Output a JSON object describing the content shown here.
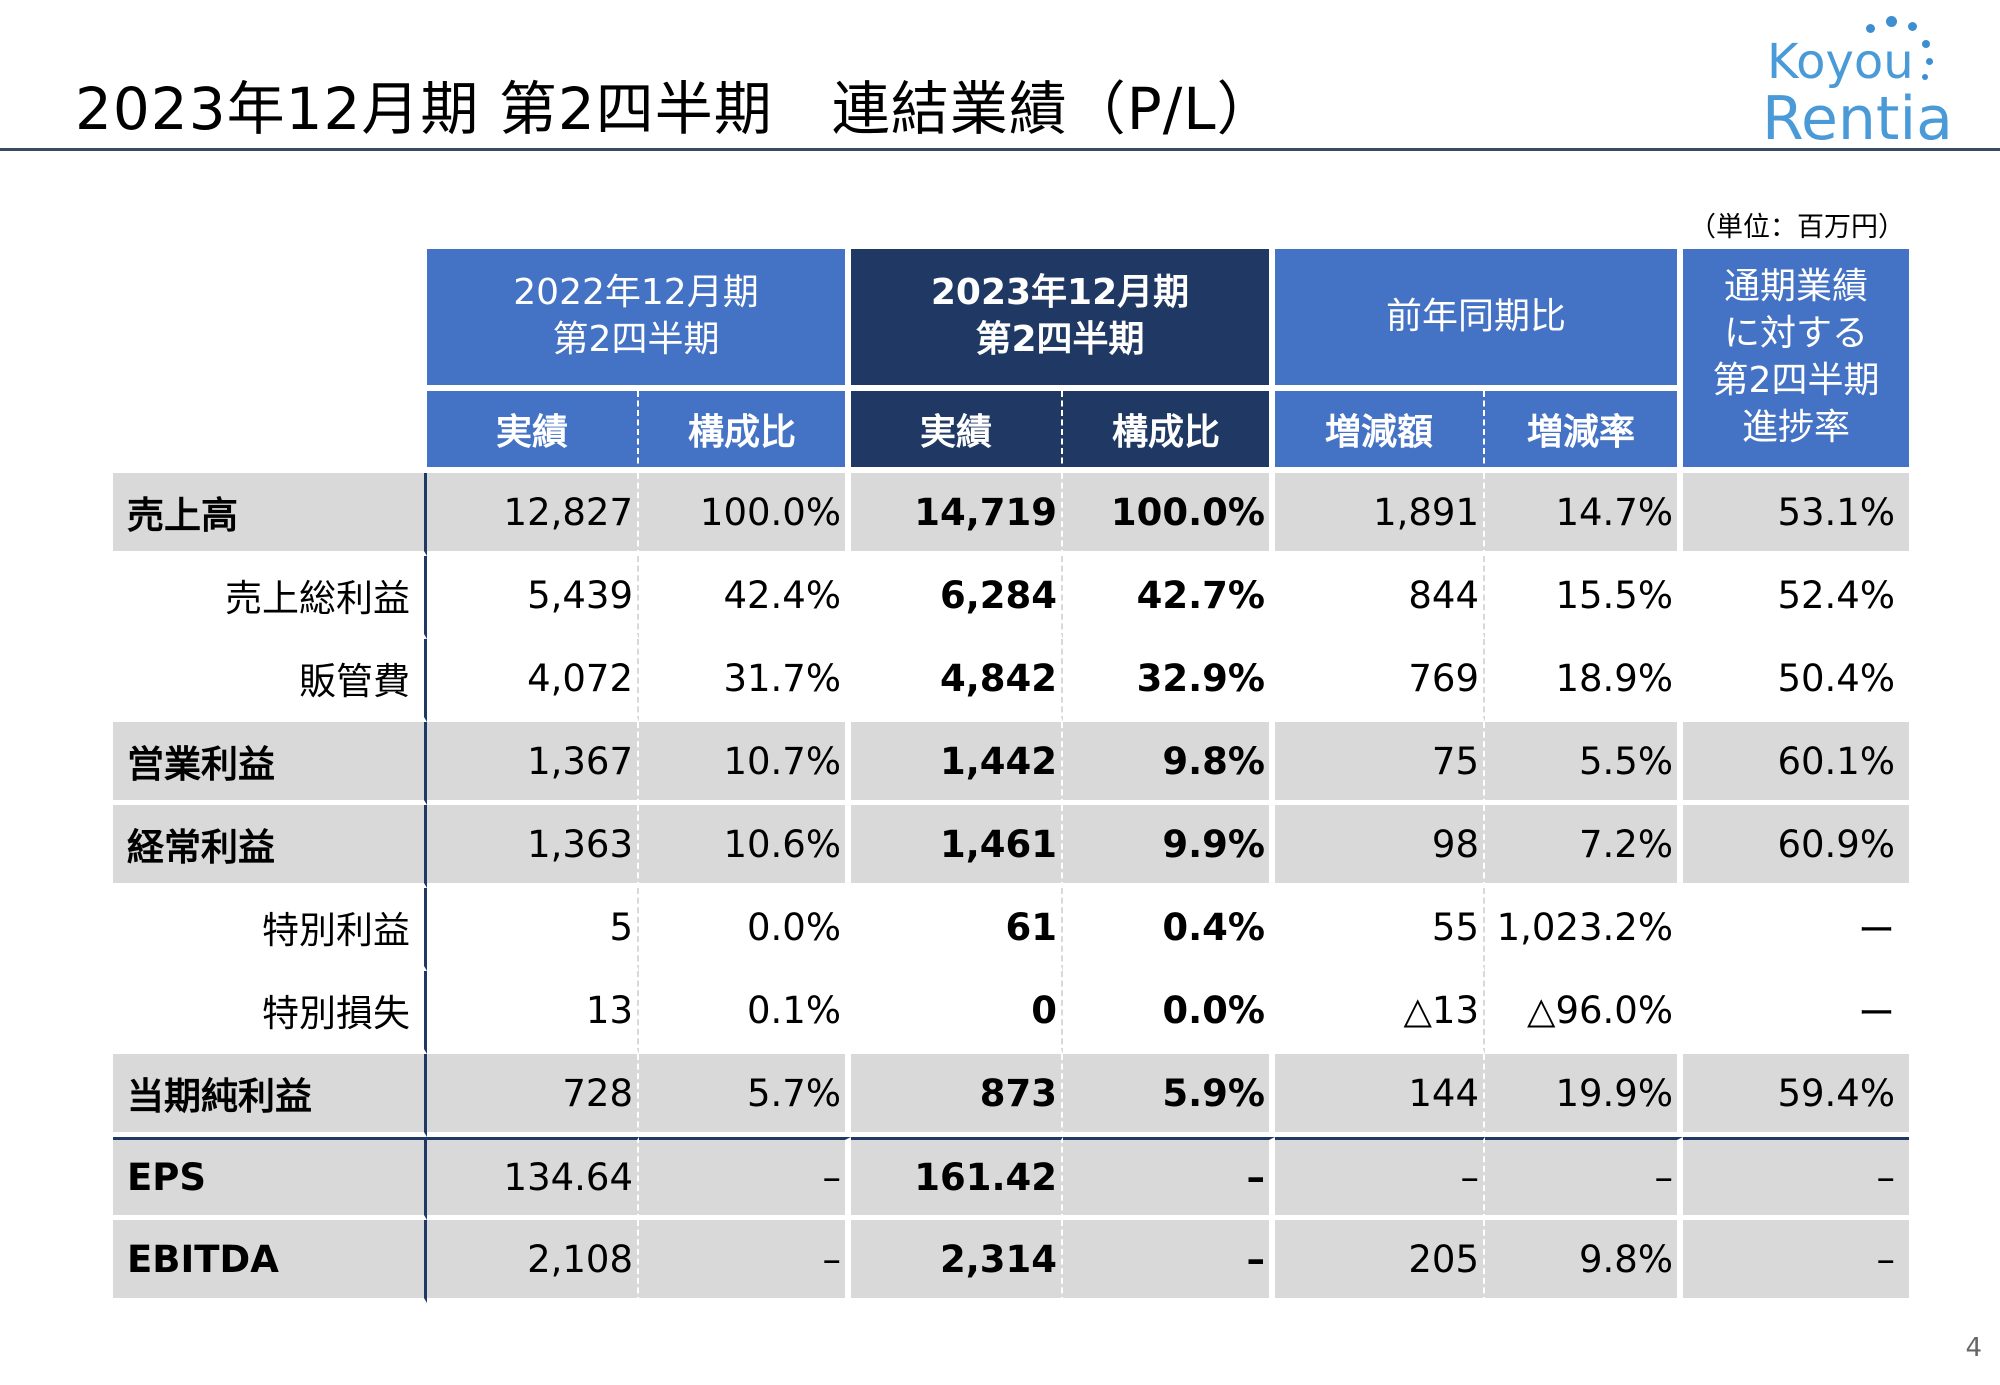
{
  "title": "2023年12月期 第2四半期　連結業績（P/L）",
  "logo": {
    "line1": "Koyou",
    "line2": "Rentia"
  },
  "unit": "（単位：百万円）",
  "header": {
    "prev_period": "2022年12月期\n第2四半期",
    "curr_period": "2023年12月期\n第2四半期",
    "yoy": "前年同期比",
    "progress": "通期業績\nに対する\n第2四半期\n進捗率",
    "actual": "実績",
    "ratio": "構成比",
    "diff_amount": "増減額",
    "diff_rate": "増減率"
  },
  "rows": [
    {
      "label": "売上高",
      "style": "main",
      "gray": true,
      "prev_actual": "12,827",
      "prev_ratio": "100.0%",
      "curr_actual": "14,719",
      "curr_ratio": "100.0%",
      "diff_amount": "1,891",
      "diff_rate": "14.7%",
      "progress": "53.1%"
    },
    {
      "label": "売上総利益",
      "style": "sub",
      "gray": false,
      "prev_actual": "5,439",
      "prev_ratio": "42.4%",
      "curr_actual": "6,284",
      "curr_ratio": "42.7%",
      "diff_amount": "844",
      "diff_rate": "15.5%",
      "progress": "52.4%"
    },
    {
      "label": "販管費",
      "style": "sub",
      "gray": false,
      "prev_actual": "4,072",
      "prev_ratio": "31.7%",
      "curr_actual": "4,842",
      "curr_ratio": "32.9%",
      "diff_amount": "769",
      "diff_rate": "18.9%",
      "progress": "50.4%"
    },
    {
      "label": "営業利益",
      "style": "main",
      "gray": true,
      "prev_actual": "1,367",
      "prev_ratio": "10.7%",
      "curr_actual": "1,442",
      "curr_ratio": "9.8%",
      "diff_amount": "75",
      "diff_rate": "5.5%",
      "progress": "60.1%"
    },
    {
      "label": "経常利益",
      "style": "main",
      "gray": true,
      "prev_actual": "1,363",
      "prev_ratio": "10.6%",
      "curr_actual": "1,461",
      "curr_ratio": "9.9%",
      "diff_amount": "98",
      "diff_rate": "7.2%",
      "progress": "60.9%"
    },
    {
      "label": "特別利益",
      "style": "sub",
      "gray": false,
      "prev_actual": "5",
      "prev_ratio": "0.0%",
      "curr_actual": "61",
      "curr_ratio": "0.4%",
      "diff_amount": "55",
      "diff_rate": "1,023.2%",
      "progress": "ー"
    },
    {
      "label": "特別損失",
      "style": "sub",
      "gray": false,
      "prev_actual": "13",
      "prev_ratio": "0.1%",
      "curr_actual": "0",
      "curr_ratio": "0.0%",
      "diff_amount": "△13",
      "diff_rate": "△96.0%",
      "progress": "ー"
    },
    {
      "label": "当期純利益",
      "style": "main",
      "gray": true,
      "prev_actual": "728",
      "prev_ratio": "5.7%",
      "curr_actual": "873",
      "curr_ratio": "5.9%",
      "diff_amount": "144",
      "diff_rate": "19.9%",
      "progress": "59.4%"
    },
    {
      "label": "EPS",
      "style": "main",
      "gray": true,
      "prev_actual": "134.64",
      "prev_ratio": "–",
      "curr_actual": "161.42",
      "curr_ratio": "–",
      "diff_amount": "–",
      "diff_rate": "–",
      "progress": "–"
    },
    {
      "label": "EBITDA",
      "style": "main",
      "gray": true,
      "prev_actual": "2,108",
      "prev_ratio": "–",
      "curr_actual": "2,314",
      "curr_ratio": "–",
      "diff_amount": "205",
      "diff_rate": "9.8%",
      "progress": "–"
    }
  ],
  "page_number": "4"
}
